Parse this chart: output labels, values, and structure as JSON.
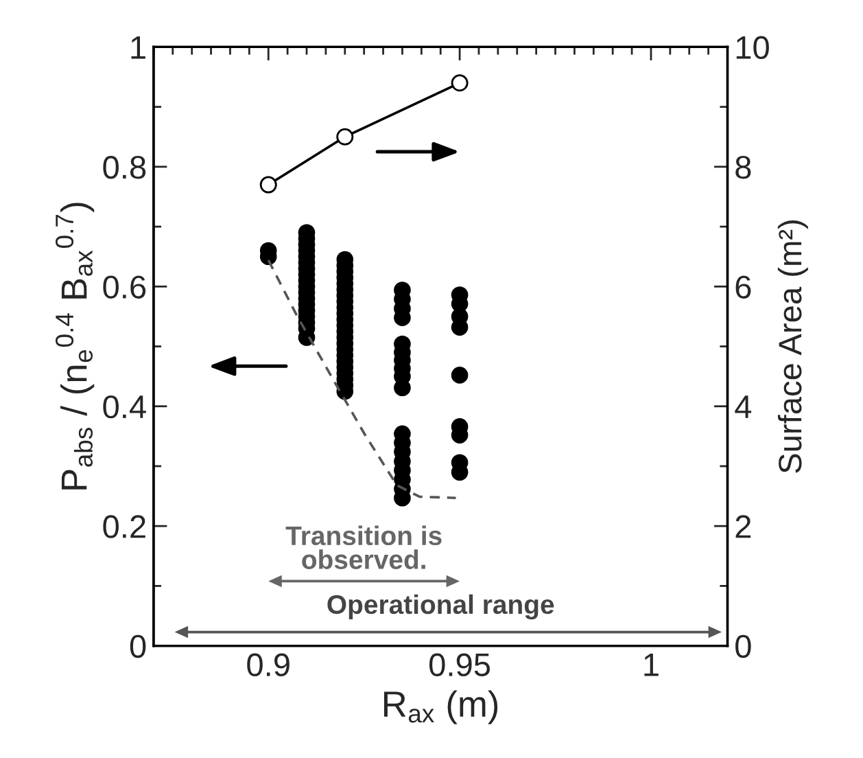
{
  "chart_data": {
    "type": "scatter",
    "xlabel": "R$_{ax}$ (m)",
    "ylabel": "P$_{abs}$ / (n$_{e}$$^{0.4}$ B$_{ax}$$^{0.7}$)",
    "y2label": "Surface Area (m²)",
    "xlim": [
      0.87,
      1.02
    ],
    "xticks": [
      0.9,
      0.95,
      1
    ],
    "ylim": [
      0,
      1
    ],
    "yticks": [
      0,
      0.2,
      0.4,
      0.6,
      0.8,
      1
    ],
    "y2lim": [
      0,
      10
    ],
    "y2ticks": [
      0,
      2,
      4,
      6,
      8,
      10
    ],
    "grid": false,
    "legend": false,
    "series": [
      {
        "color": "#000000",
        "marker": "circle",
        "x": [
          0.9,
          0.9,
          0.91,
          0.91,
          0.91,
          0.91,
          0.91,
          0.91,
          0.91,
          0.91,
          0.91,
          0.91,
          0.91,
          0.91,
          0.91,
          0.91,
          0.91,
          0.91,
          0.91,
          0.91,
          0.92,
          0.92,
          0.92,
          0.92,
          0.92,
          0.92,
          0.92,
          0.92,
          0.92,
          0.92,
          0.92,
          0.92,
          0.92,
          0.92,
          0.92,
          0.92,
          0.92,
          0.92,
          0.92,
          0.92,
          0.92,
          0.92,
          0.92,
          0.935,
          0.935,
          0.935,
          0.935,
          0.935,
          0.935,
          0.935,
          0.935,
          0.935,
          0.935,
          0.935,
          0.935,
          0.935,
          0.935,
          0.935,
          0.935,
          0.935,
          0.935,
          0.95,
          0.95,
          0.95,
          0.95,
          0.95,
          0.95,
          0.95,
          0.95,
          0.95
        ],
        "values": [
          0.66,
          0.65,
          0.69,
          0.68,
          0.67,
          0.66,
          0.65,
          0.64,
          0.63,
          0.62,
          0.61,
          0.6,
          0.59,
          0.58,
          0.57,
          0.56,
          0.55,
          0.54,
          0.53,
          0.515,
          0.645,
          0.635,
          0.625,
          0.615,
          0.605,
          0.595,
          0.585,
          0.575,
          0.565,
          0.555,
          0.545,
          0.535,
          0.525,
          0.515,
          0.505,
          0.495,
          0.485,
          0.475,
          0.465,
          0.455,
          0.445,
          0.435,
          0.425,
          0.594,
          0.579,
          0.563,
          0.548,
          0.504,
          0.49,
          0.477,
          0.463,
          0.45,
          0.431,
          0.354,
          0.339,
          0.324,
          0.308,
          0.293,
          0.278,
          0.262,
          0.247,
          0.586,
          0.571,
          0.55,
          0.532,
          0.452,
          0.366,
          0.352,
          0.306,
          0.29
        ]
      },
      {
        "type": "line",
        "color": "#555555",
        "line_style": "dashed",
        "marker": "none",
        "x": [
          0.9,
          0.9074,
          0.9169,
          0.9252,
          0.9336,
          0.9395,
          0.949
        ],
        "values": [
          0.644,
          0.552,
          0.445,
          0.353,
          0.268,
          0.249,
          0.247
        ]
      },
      {
        "type": "line",
        "axis": "y2",
        "color": "#000000",
        "line_style": "solid",
        "marker": "circle",
        "x": [
          0.9,
          0.92,
          0.95
        ],
        "values": [
          7.7,
          8.5,
          9.4
        ]
      }
    ],
    "annotations": [
      "Transition is\nobserved.",
      "Operational range"
    ]
  }
}
